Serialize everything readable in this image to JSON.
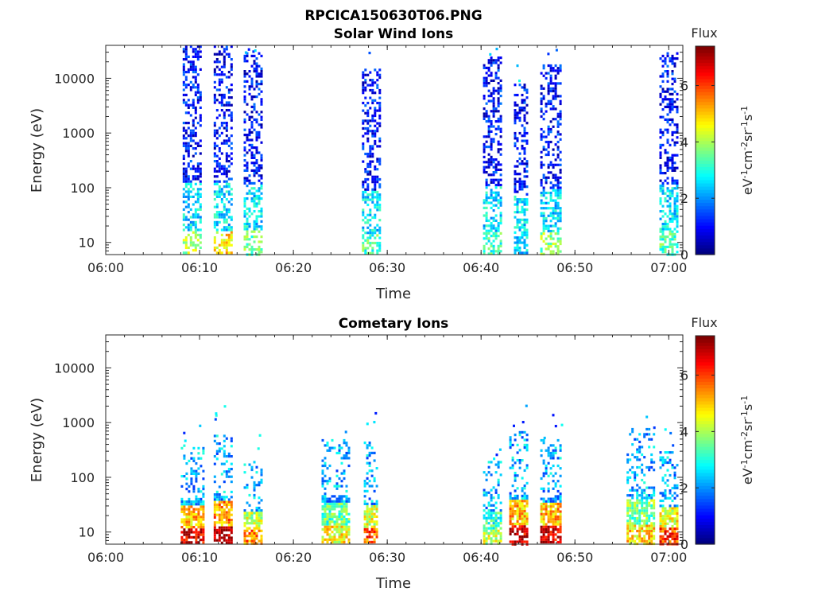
{
  "page": {
    "title": "RPCICA150630T06.PNG"
  },
  "chart_data": [
    {
      "type": "heatmap",
      "title": "Solar Wind Ions",
      "xlabel": "Time",
      "ylabel": "Energy (eV)",
      "x_ticks": [
        "06:00",
        "06:10",
        "06:20",
        "06:30",
        "06:40",
        "06:50",
        "07:00"
      ],
      "x_range_minutes": [
        0,
        61.5
      ],
      "y_ticks": [
        "10",
        "100",
        "1000",
        "10000"
      ],
      "y_tick_values": [
        10,
        100,
        1000,
        10000
      ],
      "y_range": [
        6,
        40000
      ],
      "y_scale": "log",
      "colorbar": {
        "title": "Flux",
        "label": "eV-1cm-2sr-1s-1",
        "ticks": [
          "0",
          "2",
          "4",
          "6"
        ],
        "range": [
          0,
          7.4
        ],
        "colormap": "jet"
      },
      "bursts": [
        {
          "start_min": 8.2,
          "end_min": 10.2,
          "e_top": 40000,
          "peak_flux": 4.0
        },
        {
          "start_min": 11.5,
          "end_min": 13.5,
          "e_top": 40000,
          "peak_flux": 4.8
        },
        {
          "start_min": 14.7,
          "end_min": 16.5,
          "e_top": 30000,
          "peak_flux": 3.5
        },
        {
          "start_min": 27.3,
          "end_min": 29.2,
          "e_top": 15000,
          "peak_flux": 3.3
        },
        {
          "start_min": 40.2,
          "end_min": 42.0,
          "e_top": 25000,
          "peak_flux": 3.2
        },
        {
          "start_min": 43.5,
          "end_min": 45.0,
          "e_top": 8000,
          "peak_flux": 2.5
        },
        {
          "start_min": 46.3,
          "end_min": 48.5,
          "e_top": 18000,
          "peak_flux": 3.8
        },
        {
          "start_min": 59.0,
          "end_min": 61.0,
          "e_top": 30000,
          "peak_flux": 3.3
        }
      ]
    },
    {
      "type": "heatmap",
      "title": "Cometary Ions",
      "xlabel": "Time",
      "ylabel": "Energy (eV)",
      "x_ticks": [
        "06:00",
        "06:10",
        "06:20",
        "06:30",
        "06:40",
        "06:50",
        "07:00"
      ],
      "x_range_minutes": [
        0,
        61.5
      ],
      "y_ticks": [
        "10",
        "100",
        "1000",
        "10000"
      ],
      "y_tick_values": [
        10,
        100,
        1000,
        10000
      ],
      "y_range": [
        6,
        40000
      ],
      "y_scale": "log",
      "colorbar": {
        "title": "Flux",
        "label": "eV-1cm-2sr-1s-1",
        "ticks": [
          "0",
          "2",
          "4",
          "6"
        ],
        "range": [
          0,
          7.4
        ],
        "colormap": "jet"
      },
      "bursts": [
        {
          "start_min": 8.0,
          "end_min": 10.3,
          "e_top": 400,
          "peak_flux": 6.8
        },
        {
          "start_min": 11.5,
          "end_min": 13.3,
          "e_top": 600,
          "peak_flux": 7.2
        },
        {
          "start_min": 14.7,
          "end_min": 16.5,
          "e_top": 200,
          "peak_flux": 5.5
        },
        {
          "start_min": 23.0,
          "end_min": 26.0,
          "e_top": 500,
          "peak_flux": 4.6
        },
        {
          "start_min": 27.5,
          "end_min": 29.0,
          "e_top": 450,
          "peak_flux": 5.8
        },
        {
          "start_min": 40.2,
          "end_min": 42.0,
          "e_top": 200,
          "peak_flux": 4.2
        },
        {
          "start_min": 43.0,
          "end_min": 45.0,
          "e_top": 700,
          "peak_flux": 6.8
        },
        {
          "start_min": 46.3,
          "end_min": 48.5,
          "e_top": 500,
          "peak_flux": 6.8
        },
        {
          "start_min": 55.5,
          "end_min": 58.5,
          "e_top": 800,
          "peak_flux": 4.8
        },
        {
          "start_min": 59.0,
          "end_min": 61.0,
          "e_top": 300,
          "peak_flux": 6.0
        }
      ]
    }
  ]
}
